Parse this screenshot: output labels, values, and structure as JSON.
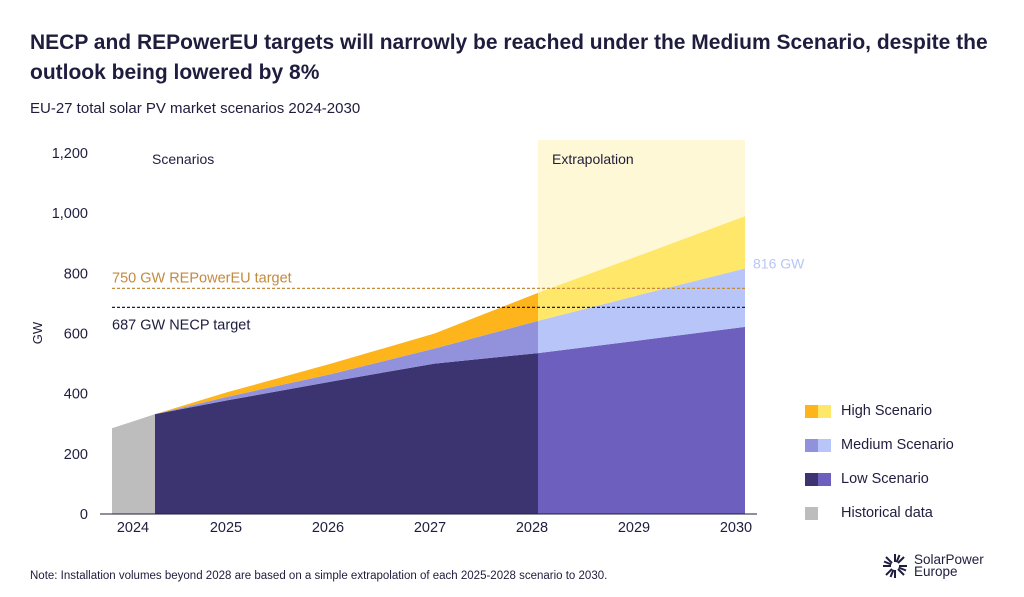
{
  "title": "NECP and REPowerEU targets will narrowly be reached under the Medium Scenario, despite the outlook being lowered by 8%",
  "subtitle": "EU-27 total solar PV market scenarios 2024-2030",
  "note": "Note: Installation volumes beyond 2028 are based on a simple extrapolation of each 2025-2028 scenario to 2030.",
  "logo": {
    "line1": "SolarPower",
    "line2": "Europe"
  },
  "chart_data": {
    "type": "area",
    "ylabel": "GW",
    "xlabel": "",
    "ylim": [
      0,
      1200
    ],
    "yticks": [
      "0",
      "200",
      "400",
      "600",
      "800",
      "1,000",
      "1,200"
    ],
    "ytick_values": [
      0,
      200,
      400,
      600,
      800,
      1000,
      1200
    ],
    "categories": [
      "2024",
      "2025",
      "2026",
      "2027",
      "2028",
      "2029",
      "2030"
    ],
    "years": [
      2024,
      2025,
      2026,
      2027,
      2028,
      2029,
      2030
    ],
    "grid": false,
    "legend_placement": "right",
    "annotations": {
      "scenarios": "Scenarios",
      "extrapolation": "Extrapolation",
      "medium_end_label": "816 GW"
    },
    "extrapolation_from": 2028,
    "historical": {
      "name": "Historical data",
      "values": [
        285,
        332
      ],
      "color": "#BDBDBD"
    },
    "series": [
      {
        "name": "High Scenario",
        "values": [
          332,
          405,
          500,
          600,
          735,
          862,
          990
        ],
        "color": "#FDB51B",
        "extrapolation_color": "#FFE76A"
      },
      {
        "name": "Medium Scenario",
        "values": [
          332,
          390,
          465,
          550,
          642,
          730,
          816
        ],
        "color": "#9292DC",
        "extrapolation_color": "#B8C5F8"
      },
      {
        "name": "Low Scenario",
        "values": [
          332,
          378,
          440,
          500,
          535,
          578,
          622
        ],
        "color": "#3B3471",
        "extrapolation_color": "#6D5FBE"
      }
    ],
    "targets": [
      {
        "label": "750 GW REPowerEU target",
        "value": 750,
        "color": "#C48A3E"
      },
      {
        "label": "687 GW NECP target",
        "value": 687,
        "color": "#1f1d3d"
      }
    ],
    "extrapolation_bg": "#FFF8D6"
  }
}
